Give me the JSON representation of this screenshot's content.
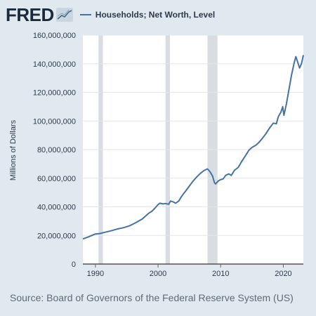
{
  "brand": {
    "logo_text": "FRED"
  },
  "colors": {
    "background": "#e1e9f0",
    "series": "#4572a7",
    "recession": "#d9dde2"
  },
  "source": {
    "text": "Source: Board of Governors of the Federal Reserve System (US)"
  },
  "chart_data": {
    "type": "line",
    "title": "",
    "xlabel": "",
    "ylabel": "Millions of Dollars",
    "legend": "top-left",
    "grid": "horizontal",
    "xlim": [
      1988.0,
      2023.2
    ],
    "ylim": [
      0,
      160000000
    ],
    "x_ticks": [
      1990,
      2000,
      2010,
      2020
    ],
    "y_ticks": [
      0,
      20000000,
      40000000,
      60000000,
      80000000,
      100000000,
      120000000,
      140000000,
      160000000
    ],
    "y_tick_labels": [
      "0",
      "20,000,000",
      "40,000,000",
      "60,000,000",
      "80,000,000",
      "100,000,000",
      "120,000,000",
      "140,000,000",
      "160,000,000"
    ],
    "recessions": [
      [
        1990.5,
        1991.2
      ],
      [
        2001.2,
        2001.9
      ],
      [
        2007.9,
        2009.5
      ]
    ],
    "series": [
      {
        "name": "Households; Net Worth, Level",
        "color": "#4572a7",
        "points": [
          [
            1988.0,
            17500000
          ],
          [
            1989.0,
            19200000
          ],
          [
            1990.0,
            21000000
          ],
          [
            1990.7,
            21300000
          ],
          [
            1991.5,
            22200000
          ],
          [
            1992.5,
            23200000
          ],
          [
            1993.5,
            24500000
          ],
          [
            1994.5,
            25400000
          ],
          [
            1995.5,
            26800000
          ],
          [
            1996.5,
            29000000
          ],
          [
            1997.5,
            31500000
          ],
          [
            1998.0,
            33500000
          ],
          [
            1998.5,
            35500000
          ],
          [
            1999.0,
            36800000
          ],
          [
            1999.5,
            39000000
          ],
          [
            2000.0,
            41500000
          ],
          [
            2000.3,
            42500000
          ],
          [
            2000.8,
            42000000
          ],
          [
            2001.2,
            42300000
          ],
          [
            2001.7,
            41800000
          ],
          [
            2002.0,
            44000000
          ],
          [
            2002.4,
            43500000
          ],
          [
            2002.8,
            42500000
          ],
          [
            2003.3,
            44000000
          ],
          [
            2003.8,
            47500000
          ],
          [
            2004.4,
            51000000
          ],
          [
            2005.0,
            54500000
          ],
          [
            2005.6,
            58000000
          ],
          [
            2006.2,
            61000000
          ],
          [
            2006.8,
            63500000
          ],
          [
            2007.4,
            65500000
          ],
          [
            2007.9,
            66500000
          ],
          [
            2008.3,
            64500000
          ],
          [
            2008.7,
            61500000
          ],
          [
            2009.0,
            57000000
          ],
          [
            2009.2,
            56000000
          ],
          [
            2009.6,
            58000000
          ],
          [
            2010.0,
            59000000
          ],
          [
            2010.4,
            59500000
          ],
          [
            2010.8,
            62000000
          ],
          [
            2011.3,
            63000000
          ],
          [
            2011.7,
            62000000
          ],
          [
            2012.2,
            65500000
          ],
          [
            2012.8,
            67500000
          ],
          [
            2013.4,
            72000000
          ],
          [
            2014.0,
            76000000
          ],
          [
            2014.5,
            79500000
          ],
          [
            2015.0,
            81500000
          ],
          [
            2015.6,
            83000000
          ],
          [
            2016.0,
            84500000
          ],
          [
            2016.6,
            87500000
          ],
          [
            2017.2,
            91000000
          ],
          [
            2017.8,
            95000000
          ],
          [
            2018.4,
            98500000
          ],
          [
            2018.9,
            98000000
          ],
          [
            2019.2,
            103000000
          ],
          [
            2019.6,
            106000000
          ],
          [
            2019.9,
            110000000
          ],
          [
            2020.1,
            104000000
          ],
          [
            2020.5,
            112000000
          ],
          [
            2020.9,
            122000000
          ],
          [
            2021.3,
            132000000
          ],
          [
            2021.7,
            140000000
          ],
          [
            2022.0,
            145000000
          ],
          [
            2022.3,
            141000000
          ],
          [
            2022.6,
            137000000
          ],
          [
            2022.9,
            140000000
          ],
          [
            2023.2,
            146000000
          ]
        ]
      }
    ]
  }
}
